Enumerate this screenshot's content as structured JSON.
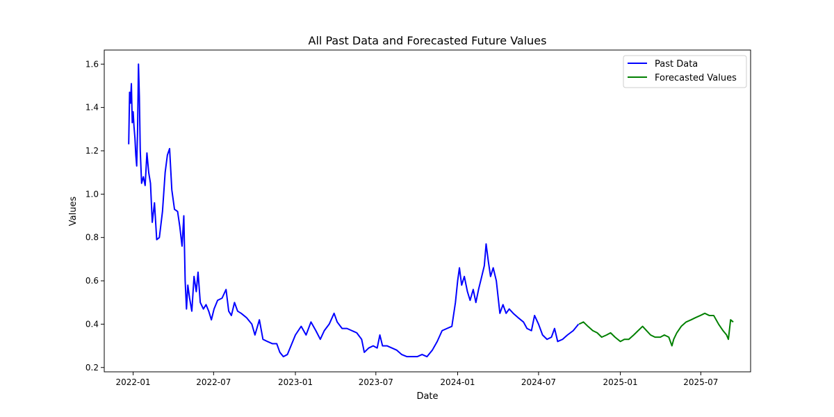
{
  "chart_data": {
    "type": "line",
    "title": "All Past Data and Forecasted Future Values",
    "xlabel": "Date",
    "ylabel": "Values",
    "xlim": [
      "2021-10-28",
      "2025-10-21"
    ],
    "ylim": [
      0.18,
      1.665
    ],
    "x_ticks": [
      "2022-01",
      "2022-07",
      "2023-01",
      "2023-07",
      "2024-01",
      "2024-07",
      "2025-01",
      "2025-07"
    ],
    "y_ticks": [
      0.2,
      0.4,
      0.6,
      0.8,
      1.0,
      1.2,
      1.4,
      1.6
    ],
    "y_tick_labels": [
      "0.2",
      "0.4",
      "0.6",
      "0.8",
      "1.0",
      "1.2",
      "1.4",
      "1.6"
    ],
    "legend_position": "top-right",
    "grid": false,
    "series": [
      {
        "name": "Past Data",
        "color": "#0000ff",
        "points": [
          [
            "2021-12-22",
            1.23
          ],
          [
            "2021-12-24",
            1.47
          ],
          [
            "2021-12-26",
            1.42
          ],
          [
            "2021-12-28",
            1.51
          ],
          [
            "2021-12-30",
            1.33
          ],
          [
            "2022-01-01",
            1.38
          ],
          [
            "2022-01-03",
            1.31
          ],
          [
            "2022-01-05",
            1.26
          ],
          [
            "2022-01-07",
            1.18
          ],
          [
            "2022-01-09",
            1.13
          ],
          [
            "2022-01-11",
            1.3
          ],
          [
            "2022-01-13",
            1.6
          ],
          [
            "2022-01-15",
            1.45
          ],
          [
            "2022-01-17",
            1.2
          ],
          [
            "2022-01-20",
            1.05
          ],
          [
            "2022-01-24",
            1.08
          ],
          [
            "2022-01-28",
            1.04
          ],
          [
            "2022-02-01",
            1.19
          ],
          [
            "2022-02-05",
            1.1
          ],
          [
            "2022-02-09",
            1.05
          ],
          [
            "2022-02-13",
            0.87
          ],
          [
            "2022-02-18",
            0.96
          ],
          [
            "2022-02-23",
            0.79
          ],
          [
            "2022-03-01",
            0.8
          ],
          [
            "2022-03-08",
            0.92
          ],
          [
            "2022-03-14",
            1.1
          ],
          [
            "2022-03-19",
            1.18
          ],
          [
            "2022-03-24",
            1.21
          ],
          [
            "2022-03-29",
            1.02
          ],
          [
            "2022-04-04",
            0.93
          ],
          [
            "2022-04-11",
            0.92
          ],
          [
            "2022-04-16",
            0.85
          ],
          [
            "2022-04-21",
            0.76
          ],
          [
            "2022-04-25",
            0.9
          ],
          [
            "2022-04-28",
            0.6
          ],
          [
            "2022-05-01",
            0.47
          ],
          [
            "2022-05-04",
            0.58
          ],
          [
            "2022-05-08",
            0.52
          ],
          [
            "2022-05-13",
            0.46
          ],
          [
            "2022-05-18",
            0.62
          ],
          [
            "2022-05-23",
            0.55
          ],
          [
            "2022-05-27",
            0.64
          ],
          [
            "2022-06-01",
            0.5
          ],
          [
            "2022-06-08",
            0.47
          ],
          [
            "2022-06-14",
            0.49
          ],
          [
            "2022-06-20",
            0.46
          ],
          [
            "2022-06-26",
            0.42
          ],
          [
            "2022-07-02",
            0.47
          ],
          [
            "2022-07-10",
            0.51
          ],
          [
            "2022-07-20",
            0.52
          ],
          [
            "2022-07-29",
            0.56
          ],
          [
            "2022-08-04",
            0.46
          ],
          [
            "2022-08-10",
            0.44
          ],
          [
            "2022-08-17",
            0.5
          ],
          [
            "2022-08-24",
            0.46
          ],
          [
            "2022-09-01",
            0.45
          ],
          [
            "2022-09-13",
            0.43
          ],
          [
            "2022-09-25",
            0.4
          ],
          [
            "2022-10-02",
            0.35
          ],
          [
            "2022-10-12",
            0.42
          ],
          [
            "2022-10-20",
            0.33
          ],
          [
            "2022-10-30",
            0.32
          ],
          [
            "2022-11-10",
            0.31
          ],
          [
            "2022-11-20",
            0.31
          ],
          [
            "2022-11-27",
            0.27
          ],
          [
            "2022-12-05",
            0.25
          ],
          [
            "2022-12-14",
            0.26
          ],
          [
            "2022-12-22",
            0.3
          ],
          [
            "2023-01-01",
            0.35
          ],
          [
            "2023-01-14",
            0.39
          ],
          [
            "2023-01-25",
            0.35
          ],
          [
            "2023-02-05",
            0.41
          ],
          [
            "2023-02-16",
            0.37
          ],
          [
            "2023-02-26",
            0.33
          ],
          [
            "2023-03-07",
            0.37
          ],
          [
            "2023-03-18",
            0.4
          ],
          [
            "2023-03-29",
            0.45
          ],
          [
            "2023-04-05",
            0.41
          ],
          [
            "2023-04-16",
            0.38
          ],
          [
            "2023-04-27",
            0.38
          ],
          [
            "2023-05-08",
            0.37
          ],
          [
            "2023-05-19",
            0.36
          ],
          [
            "2023-05-30",
            0.33
          ],
          [
            "2023-06-05",
            0.27
          ],
          [
            "2023-06-15",
            0.29
          ],
          [
            "2023-06-25",
            0.3
          ],
          [
            "2023-07-04",
            0.29
          ],
          [
            "2023-07-10",
            0.35
          ],
          [
            "2023-07-16",
            0.3
          ],
          [
            "2023-07-26",
            0.3
          ],
          [
            "2023-08-06",
            0.29
          ],
          [
            "2023-08-17",
            0.28
          ],
          [
            "2023-08-28",
            0.26
          ],
          [
            "2023-09-09",
            0.25
          ],
          [
            "2023-09-21",
            0.25
          ],
          [
            "2023-10-02",
            0.25
          ],
          [
            "2023-10-13",
            0.26
          ],
          [
            "2023-10-24",
            0.25
          ],
          [
            "2023-11-05",
            0.28
          ],
          [
            "2023-11-16",
            0.32
          ],
          [
            "2023-11-27",
            0.37
          ],
          [
            "2023-12-08",
            0.38
          ],
          [
            "2023-12-19",
            0.39
          ],
          [
            "2023-12-27",
            0.5
          ],
          [
            "2024-01-01",
            0.6
          ],
          [
            "2024-01-05",
            0.66
          ],
          [
            "2024-01-10",
            0.58
          ],
          [
            "2024-01-16",
            0.62
          ],
          [
            "2024-01-23",
            0.55
          ],
          [
            "2024-01-29",
            0.51
          ],
          [
            "2024-02-05",
            0.56
          ],
          [
            "2024-02-11",
            0.5
          ],
          [
            "2024-02-17",
            0.56
          ],
          [
            "2024-02-23",
            0.61
          ],
          [
            "2024-03-01",
            0.67
          ],
          [
            "2024-03-05",
            0.77
          ],
          [
            "2024-03-10",
            0.69
          ],
          [
            "2024-03-15",
            0.62
          ],
          [
            "2024-03-21",
            0.66
          ],
          [
            "2024-03-28",
            0.6
          ],
          [
            "2024-04-05",
            0.45
          ],
          [
            "2024-04-12",
            0.49
          ],
          [
            "2024-04-19",
            0.45
          ],
          [
            "2024-04-26",
            0.47
          ],
          [
            "2024-05-05",
            0.45
          ],
          [
            "2024-05-16",
            0.43
          ],
          [
            "2024-05-28",
            0.41
          ],
          [
            "2024-06-05",
            0.38
          ],
          [
            "2024-06-15",
            0.37
          ],
          [
            "2024-06-22",
            0.44
          ],
          [
            "2024-07-01",
            0.4
          ],
          [
            "2024-07-10",
            0.35
          ],
          [
            "2024-07-20",
            0.33
          ],
          [
            "2024-07-30",
            0.34
          ],
          [
            "2024-08-06",
            0.38
          ],
          [
            "2024-08-13",
            0.32
          ],
          [
            "2024-08-24",
            0.33
          ],
          [
            "2024-09-04",
            0.35
          ],
          [
            "2024-09-17",
            0.37
          ],
          [
            "2024-09-29",
            0.4
          ]
        ]
      },
      {
        "name": "Forecasted Values",
        "color": "#008000",
        "points": [
          [
            "2024-09-30",
            0.4
          ],
          [
            "2024-10-10",
            0.41
          ],
          [
            "2024-10-20",
            0.39
          ],
          [
            "2024-10-31",
            0.37
          ],
          [
            "2024-11-10",
            0.36
          ],
          [
            "2024-11-20",
            0.34
          ],
          [
            "2024-12-01",
            0.35
          ],
          [
            "2024-12-10",
            0.36
          ],
          [
            "2024-12-20",
            0.34
          ],
          [
            "2025-01-01",
            0.32
          ],
          [
            "2025-01-10",
            0.33
          ],
          [
            "2025-01-20",
            0.33
          ],
          [
            "2025-01-31",
            0.35
          ],
          [
            "2025-02-10",
            0.37
          ],
          [
            "2025-02-20",
            0.39
          ],
          [
            "2025-03-01",
            0.37
          ],
          [
            "2025-03-10",
            0.35
          ],
          [
            "2025-03-20",
            0.34
          ],
          [
            "2025-04-01",
            0.34
          ],
          [
            "2025-04-10",
            0.35
          ],
          [
            "2025-04-20",
            0.34
          ],
          [
            "2025-04-27",
            0.3
          ],
          [
            "2025-05-01",
            0.33
          ],
          [
            "2025-05-08",
            0.36
          ],
          [
            "2025-05-18",
            0.39
          ],
          [
            "2025-05-29",
            0.41
          ],
          [
            "2025-06-09",
            0.42
          ],
          [
            "2025-06-19",
            0.43
          ],
          [
            "2025-06-30",
            0.44
          ],
          [
            "2025-07-10",
            0.45
          ],
          [
            "2025-07-20",
            0.44
          ],
          [
            "2025-07-30",
            0.44
          ],
          [
            "2025-08-10",
            0.4
          ],
          [
            "2025-08-20",
            0.37
          ],
          [
            "2025-08-28",
            0.35
          ],
          [
            "2025-09-01",
            0.33
          ],
          [
            "2025-09-06",
            0.42
          ],
          [
            "2025-09-12",
            0.41
          ]
        ]
      }
    ]
  }
}
